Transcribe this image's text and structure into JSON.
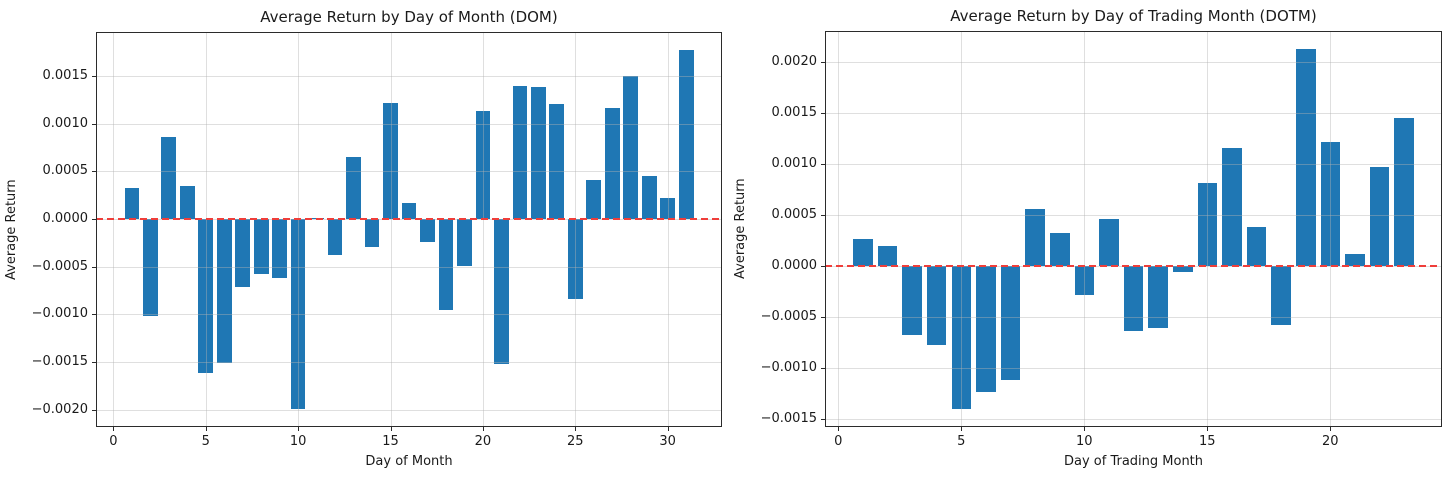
{
  "figure": {
    "background_color": "#ffffff",
    "bar_color": "#1f77b4",
    "zero_line_color": "#ef3e3a",
    "grid_color": "#e3e3e3",
    "spine_color": "#2b2b2b",
    "text_color": "#1a1a1a"
  },
  "chart_data": [
    {
      "type": "bar",
      "title": "Average Return by Day of Month (DOM)",
      "xlabel": "Day of Month",
      "ylabel": "Average Return",
      "x": [
        1,
        2,
        3,
        4,
        5,
        6,
        7,
        8,
        9,
        10,
        11,
        12,
        13,
        14,
        15,
        16,
        17,
        18,
        19,
        20,
        21,
        22,
        23,
        24,
        25,
        26,
        27,
        28,
        29,
        30,
        31
      ],
      "values": [
        0.00033,
        -0.00102,
        0.00086,
        0.00035,
        -0.00161,
        -0.00151,
        -0.00071,
        -0.00058,
        -0.00062,
        -0.00199,
        1e-05,
        -0.00038,
        0.00065,
        -0.00029,
        0.00122,
        0.00017,
        -0.00024,
        -0.00095,
        -0.00049,
        0.00113,
        -0.00152,
        0.00139,
        0.00138,
        0.00121,
        -0.00084,
        0.00041,
        0.00116,
        0.0015,
        0.00045,
        0.00022,
        0.00177
      ],
      "bar_width": 0.8,
      "xlim": [
        -0.94,
        32.94
      ],
      "ylim": [
        -0.00218,
        0.00196
      ],
      "xticks": [
        0,
        5,
        10,
        15,
        20,
        25,
        30
      ],
      "yticks": [
        0.0015,
        0.001,
        0.0005,
        0.0,
        -0.0005,
        -0.001,
        -0.0015,
        -0.002
      ],
      "zero_line": {
        "y": 0,
        "style": "dashed"
      },
      "grid": true,
      "legend": null
    },
    {
      "type": "bar",
      "title": "Average Return by Day of Trading Month (DOTM)",
      "xlabel": "Day of Trading Month",
      "ylabel": "Average Return",
      "x": [
        1,
        2,
        3,
        4,
        5,
        6,
        7,
        8,
        9,
        10,
        11,
        12,
        13,
        14,
        15,
        16,
        17,
        18,
        19,
        20,
        21,
        22,
        23
      ],
      "values": [
        0.00026,
        0.00019,
        -0.00068,
        -0.00078,
        -0.0014,
        -0.00124,
        -0.00112,
        0.00056,
        0.00032,
        -0.00029,
        0.00046,
        -0.00064,
        -0.00061,
        -6e-05,
        0.00081,
        0.00115,
        0.00038,
        -0.00058,
        0.00212,
        0.00121,
        0.00012,
        0.00097,
        0.00145
      ],
      "bar_width": 0.8,
      "xlim": [
        -0.54,
        24.54
      ],
      "ylim": [
        -0.00158,
        0.0023
      ],
      "xticks": [
        0,
        5,
        10,
        15,
        20
      ],
      "yticks": [
        0.002,
        0.0015,
        0.001,
        0.0005,
        0.0,
        -0.0005,
        -0.001,
        -0.0015
      ],
      "zero_line": {
        "y": 0,
        "style": "dashed"
      },
      "grid": true,
      "legend": null
    }
  ]
}
